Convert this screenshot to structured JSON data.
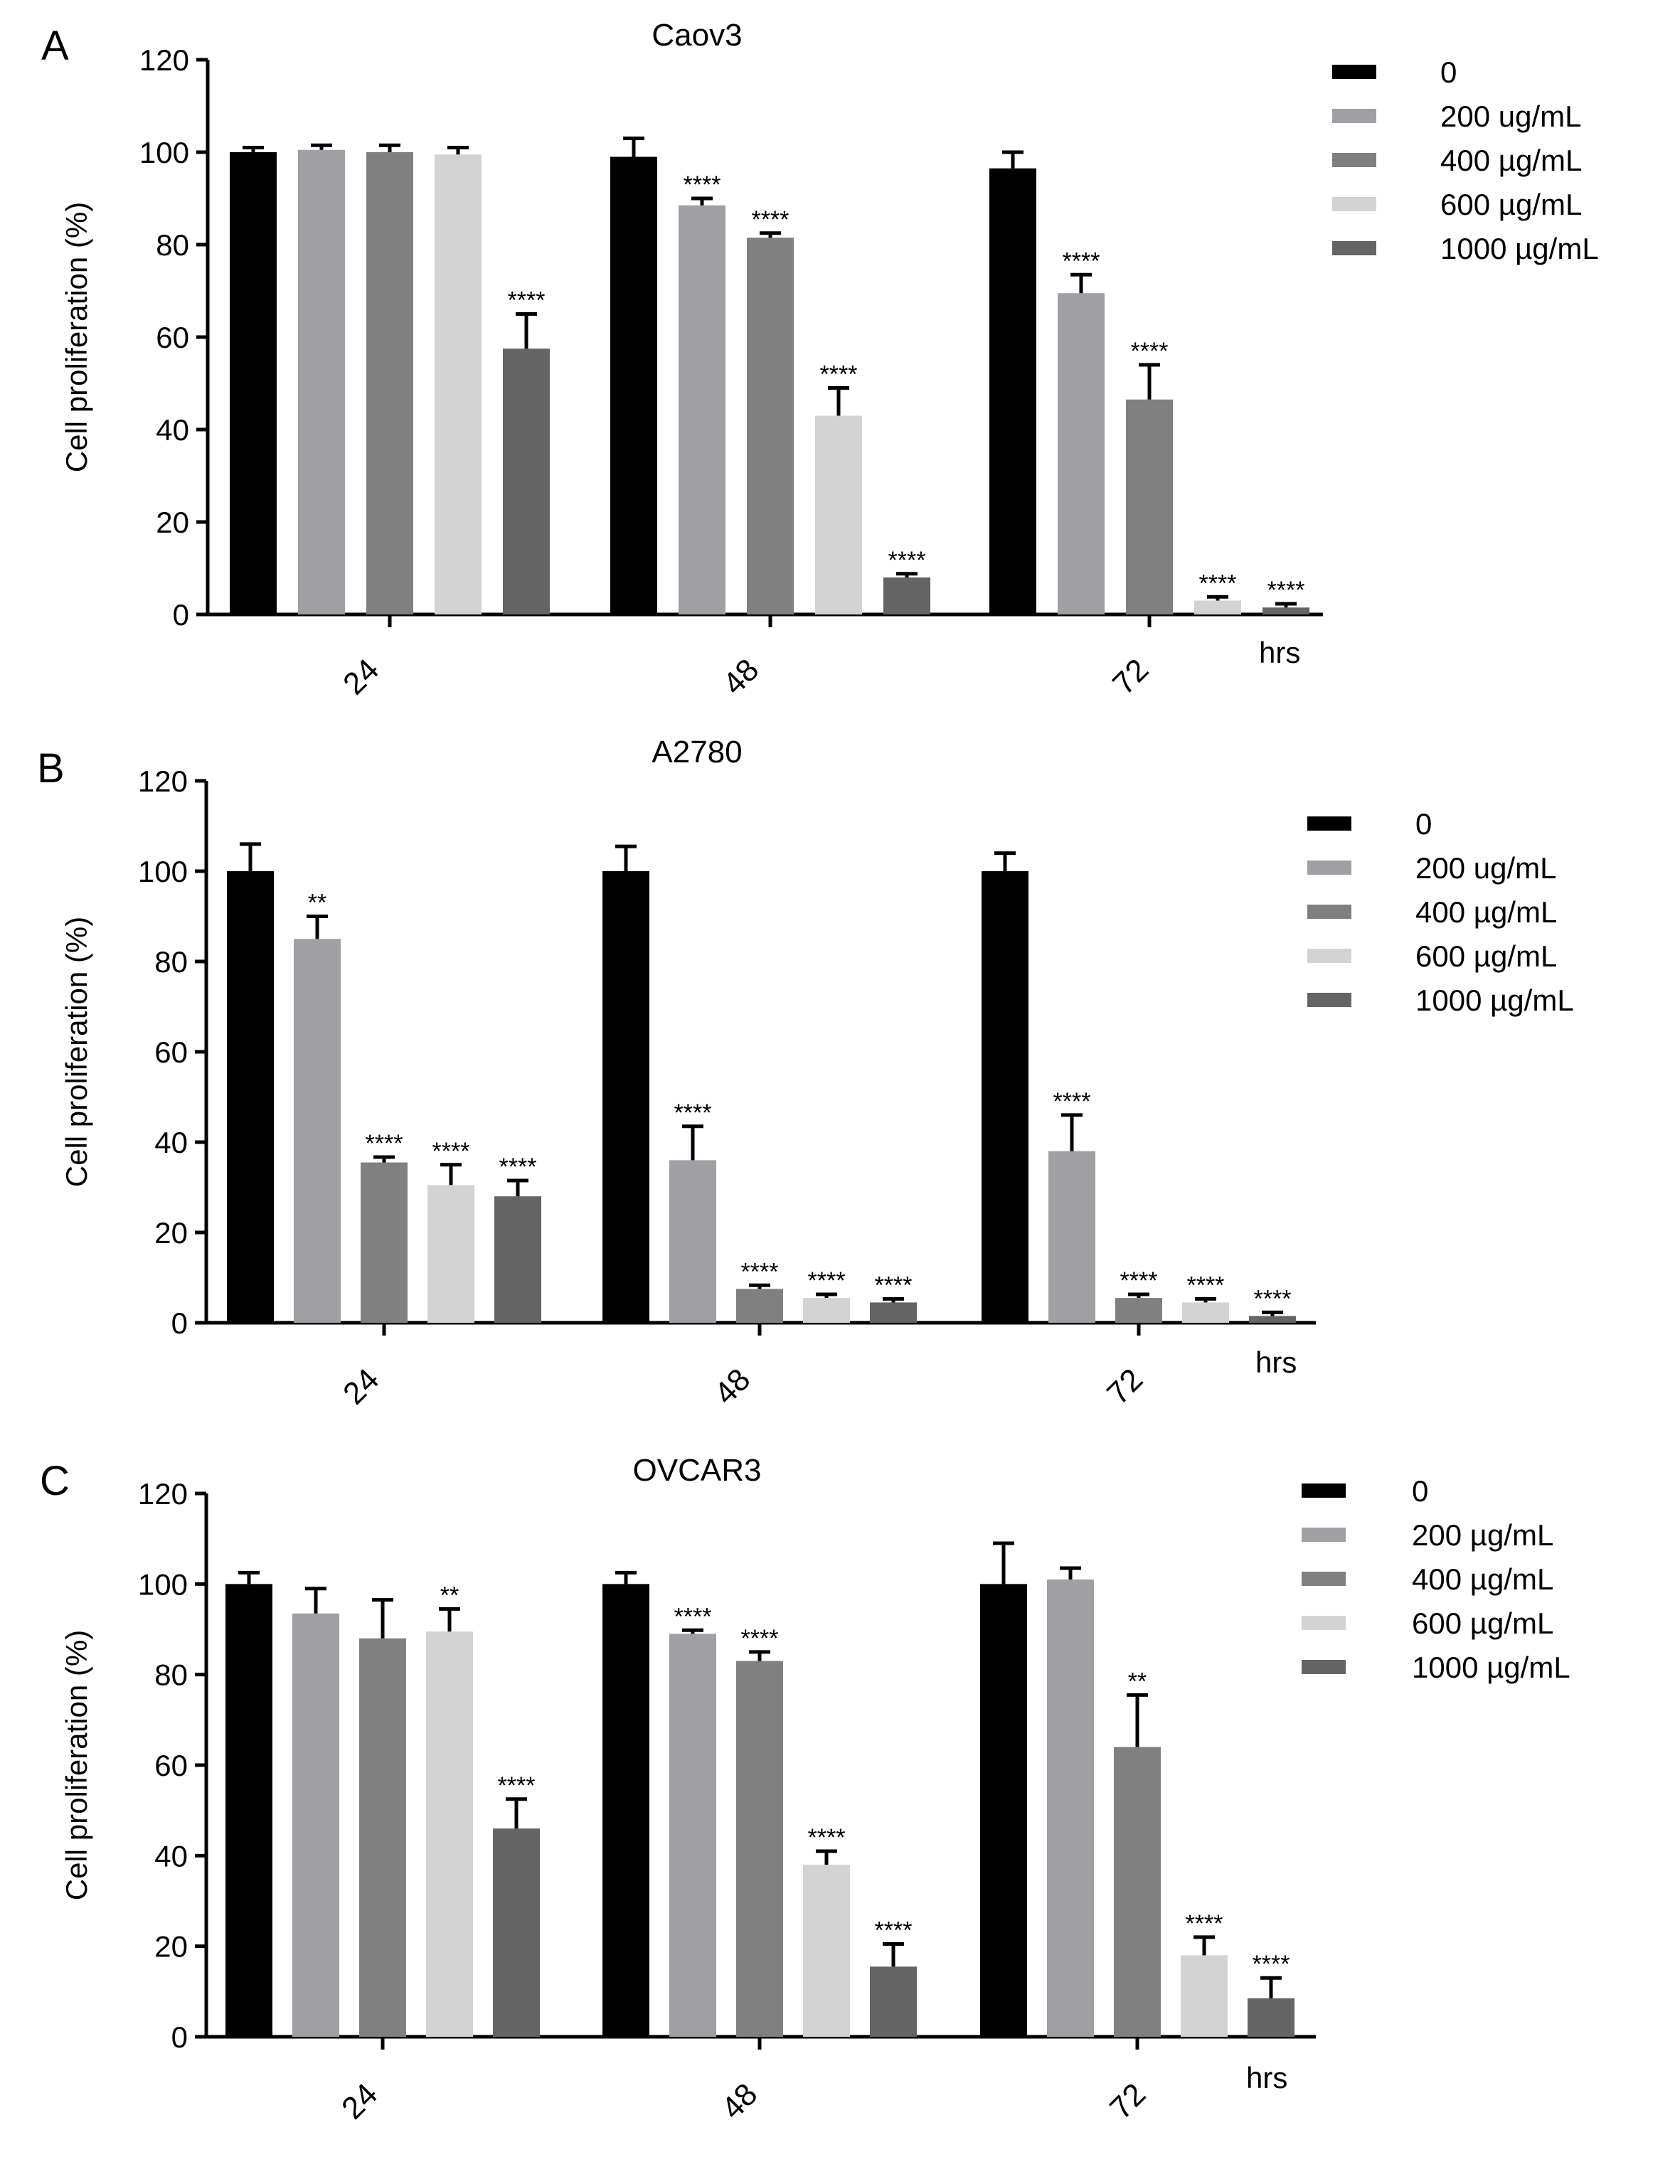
{
  "chart_data": [
    {
      "type": "bar",
      "panel_label": "A",
      "title": "Caov3",
      "ylabel": "Cell proliferation (%)",
      "xunit": "hrs",
      "ylim": [
        0,
        120
      ],
      "yticks": [
        "0",
        "20",
        "40",
        "60",
        "80",
        "100",
        "120"
      ],
      "categories": [
        "24",
        "48",
        "72"
      ],
      "legend": {
        "position": "top-right"
      },
      "series": [
        {
          "name": "0",
          "color": "#000000",
          "values": [
            100,
            99,
            96.5
          ],
          "errors": [
            1,
            4,
            3.5
          ],
          "annotations": [
            "",
            "",
            ""
          ]
        },
        {
          "name": "200 ug/mL",
          "color": "#a0a0a4",
          "values": [
            100.5,
            88.5,
            69.5
          ],
          "errors": [
            1,
            1.5,
            4
          ],
          "annotations": [
            "",
            "****",
            "****"
          ]
        },
        {
          "name": "400 µg/mL",
          "color": "#808080",
          "values": [
            100,
            81.5,
            46.5
          ],
          "errors": [
            1.5,
            1,
            7.5
          ],
          "annotations": [
            "",
            "****",
            "****"
          ]
        },
        {
          "name": "600 µg/mL",
          "color": "#d3d3d3",
          "values": [
            99.5,
            43,
            3
          ],
          "errors": [
            1.5,
            6,
            0.8
          ],
          "annotations": [
            "",
            "****",
            "****"
          ]
        },
        {
          "name": "1000 µg/mL",
          "color": "#646464",
          "values": [
            57.5,
            8,
            1.5
          ],
          "errors": [
            7.5,
            0.8,
            0.8
          ],
          "annotations": [
            "****",
            "****",
            "****"
          ]
        }
      ]
    },
    {
      "type": "bar",
      "panel_label": "B",
      "title": "A2780",
      "ylabel": "Cell proliferation (%)",
      "xunit": "hrs",
      "ylim": [
        0,
        120
      ],
      "yticks": [
        "0",
        "20",
        "40",
        "60",
        "80",
        "100",
        "120"
      ],
      "categories": [
        "24",
        "48",
        "72"
      ],
      "legend": {
        "position": "top-right"
      },
      "series": [
        {
          "name": "0",
          "color": "#000000",
          "values": [
            100,
            100,
            100
          ],
          "errors": [
            6,
            5.5,
            4
          ],
          "annotations": [
            "",
            "",
            ""
          ]
        },
        {
          "name": "200 ug/mL",
          "color": "#a0a0a4",
          "values": [
            85,
            36,
            38
          ],
          "errors": [
            5,
            7.5,
            8
          ],
          "annotations": [
            "**",
            "****",
            "****"
          ]
        },
        {
          "name": "400 µg/mL",
          "color": "#808080",
          "values": [
            35.5,
            7.5,
            5.5
          ],
          "errors": [
            1.2,
            0.8,
            0.8
          ],
          "annotations": [
            "****",
            "****",
            "****"
          ]
        },
        {
          "name": "600 µg/mL",
          "color": "#d3d3d3",
          "values": [
            30.5,
            5.5,
            4.5
          ],
          "errors": [
            4.5,
            0.8,
            0.8
          ],
          "annotations": [
            "****",
            "****",
            "****"
          ]
        },
        {
          "name": "1000 µg/mL",
          "color": "#646464",
          "values": [
            28,
            4.5,
            1.5
          ],
          "errors": [
            3.5,
            0.8,
            0.8
          ],
          "annotations": [
            "****",
            "****",
            "****"
          ]
        }
      ]
    },
    {
      "type": "bar",
      "panel_label": "C",
      "title": "OVCAR3",
      "ylabel": "Cell proliferation (%)",
      "xunit": "hrs",
      "ylim": [
        0,
        120
      ],
      "yticks": [
        "0",
        "20",
        "40",
        "60",
        "80",
        "100",
        "120"
      ],
      "categories": [
        "24",
        "48",
        "72"
      ],
      "legend": {
        "position": "top-right"
      },
      "series": [
        {
          "name": "0",
          "color": "#000000",
          "values": [
            100,
            100,
            100
          ],
          "errors": [
            2.5,
            2.5,
            9
          ],
          "annotations": [
            "",
            "",
            ""
          ]
        },
        {
          "name": "200 µg/mL",
          "color": "#a0a0a4",
          "values": [
            93.5,
            89,
            101
          ],
          "errors": [
            5.5,
            0.8,
            2.5
          ],
          "annotations": [
            "",
            "****",
            ""
          ]
        },
        {
          "name": "400 µg/mL",
          "color": "#808080",
          "values": [
            88,
            83,
            64
          ],
          "errors": [
            8.5,
            2,
            11.5
          ],
          "annotations": [
            "",
            "****",
            "**"
          ]
        },
        {
          "name": "600 µg/mL",
          "color": "#d3d3d3",
          "values": [
            89.5,
            38,
            18
          ],
          "errors": [
            5,
            3,
            4
          ],
          "annotations": [
            "**",
            "****",
            "****"
          ]
        },
        {
          "name": "1000 µg/mL",
          "color": "#646464",
          "values": [
            46,
            15.5,
            8.5
          ],
          "errors": [
            6.5,
            5,
            4.5
          ],
          "annotations": [
            "****",
            "****",
            "****"
          ]
        }
      ]
    }
  ]
}
